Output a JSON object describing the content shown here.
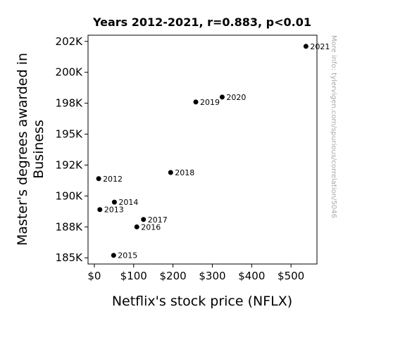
{
  "chart_data": {
    "type": "scatter",
    "title": "Years 2012-2021, r=0.883, p<0.01",
    "xlabel": "Netflix's stock price (NFLX)",
    "ylabel": [
      "Master's degrees awarded in",
      "Business"
    ],
    "watermark": "More info: tylervigen.com/spurious/correlation/5046",
    "xlim": [
      -16,
      566
    ],
    "ylim": [
      184500,
      203000
    ],
    "x_ticks": [
      0,
      100,
      200,
      300,
      400,
      500
    ],
    "x_tick_labels": [
      "$0",
      "$100",
      "$200",
      "$300",
      "$400",
      "$500"
    ],
    "y_ticks": [
      185000,
      187500,
      190000,
      192500,
      195000,
      197500,
      200000,
      202500
    ],
    "y_tick_labels": [
      "185K",
      "188K",
      "190K",
      "192K",
      "195K",
      "198K",
      "200K",
      "202K"
    ],
    "grid": false,
    "marker_color": "#000000",
    "points": [
      {
        "label": "2012",
        "x": 11,
        "y": 191400
      },
      {
        "label": "2013",
        "x": 14,
        "y": 188900
      },
      {
        "label": "2014",
        "x": 51,
        "y": 189500
      },
      {
        "label": "2015",
        "x": 49,
        "y": 185200
      },
      {
        "label": "2016",
        "x": 108,
        "y": 187500
      },
      {
        "label": "2017",
        "x": 125,
        "y": 188100
      },
      {
        "label": "2018",
        "x": 194,
        "y": 191900
      },
      {
        "label": "2019",
        "x": 258,
        "y": 197600
      },
      {
        "label": "2020",
        "x": 325,
        "y": 198000
      },
      {
        "label": "2021",
        "x": 538,
        "y": 202100
      }
    ]
  }
}
